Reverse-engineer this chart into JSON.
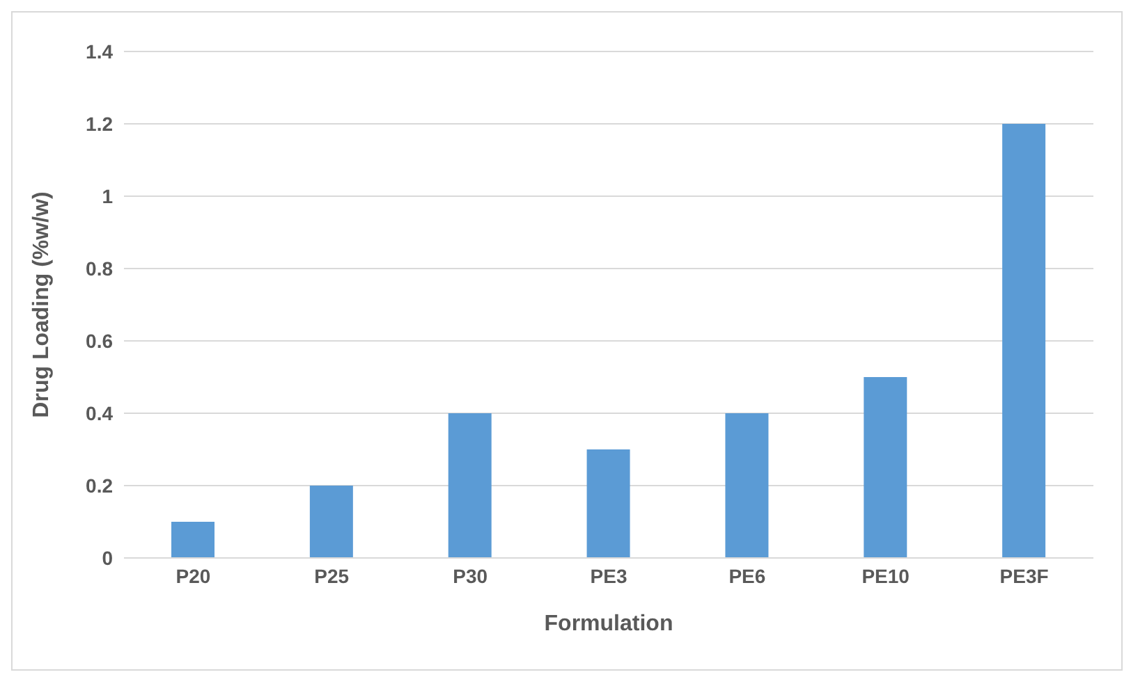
{
  "chart_data": {
    "type": "bar",
    "xlabel": "Formulation",
    "ylabel": "Drug Loading (%w/w)",
    "categories": [
      "P20",
      "P25",
      "P30",
      "PE3",
      "PE6",
      "PE10",
      "PE3F"
    ],
    "values": [
      0.1,
      0.2,
      0.4,
      0.3,
      0.4,
      0.5,
      1.2
    ],
    "color": "#5b9bd5",
    "ylim": [
      0,
      1.4
    ],
    "yticks": [
      0,
      0.2,
      0.4,
      0.6,
      0.8,
      1,
      1.2,
      1.4
    ],
    "grid": "y"
  }
}
